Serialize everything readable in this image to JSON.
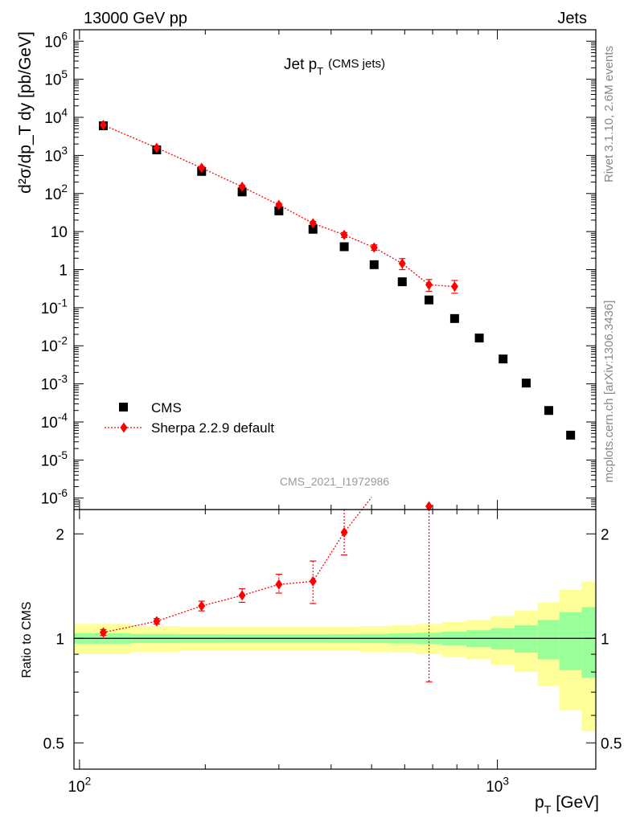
{
  "header": {
    "left": "13000 GeV pp",
    "right": "Jets"
  },
  "side_labels": {
    "rivet": "Rivet 3.1.10,  2.6M events",
    "mcplots": "mcplots.cern.ch [arXiv:1306.3436]"
  },
  "chart_data": [
    {
      "type": "scatter",
      "title": "Jet p_T (CMS jets)",
      "title_main": "Jet p",
      "title_sub": "T",
      "title_suffix": "(CMS jets)",
      "ylabel": "d²σ/dp_T dy [pb/GeV]",
      "xscale": "log",
      "yscale": "log",
      "xlim": [
        97,
        1720
      ],
      "ylim": [
        5e-07,
        2000000.0
      ],
      "y_tick_labels": [
        "10^6",
        "10^5",
        "10^4",
        "10^3",
        "10^2",
        "10",
        "1",
        "10^-1",
        "10^-2",
        "10^-3",
        "10^-4",
        "10^-5",
        "10^-6"
      ],
      "legend_position": "lower-left",
      "watermark": "CMS_2021_I1972986",
      "series": [
        {
          "name": "CMS",
          "marker": "square",
          "color": "#000000",
          "x": [
            114,
            153,
            196,
            245,
            300,
            362,
            430,
            507,
            592,
            686,
            790,
            905,
            1032,
            1172,
            1327,
            1497
          ],
          "y": [
            6000,
            1400,
            380,
            110,
            35,
            11.5,
            4.0,
            1.35,
            0.48,
            0.16,
            0.052,
            0.016,
            0.0045,
            0.00105,
            0.0002,
            4.5e-05
          ]
        },
        {
          "name": "Sherpa 2.2.9 default",
          "marker": "diamond",
          "color": "#ff0000",
          "x": [
            114,
            153,
            196,
            245,
            300,
            362,
            430,
            507,
            592,
            686,
            790
          ],
          "y": [
            6300,
            1580,
            470,
            150,
            50,
            16.5,
            8.2,
            3.8,
            1.45,
            0.4,
            0.36
          ],
          "yerr_low": [
            500,
            130,
            40,
            14,
            5,
            2,
            1.2,
            0.6,
            0.45,
            0.13,
            0.12
          ],
          "yerr_high": [
            500,
            130,
            40,
            14,
            5,
            2,
            1.2,
            0.7,
            0.5,
            0.15,
            0.16
          ]
        }
      ]
    },
    {
      "type": "scatter",
      "title": "",
      "ylabel": "Ratio to CMS",
      "xlabel": "p_T [GeV]",
      "xlabel_main": "p",
      "xlabel_sub": "T",
      "xlabel_suffix": "[GeV]",
      "xscale": "log",
      "yscale": "log",
      "xlim": [
        97,
        1720
      ],
      "ylim": [
        0.42,
        2.35
      ],
      "x_tick_labels": [
        "10^2",
        "10^3"
      ],
      "y_tick_labels": [
        "0.5",
        "1",
        "2"
      ],
      "band_edges": [
        97,
        133,
        174,
        221,
        273,
        331,
        396,
        468,
        548,
        636,
        736,
        843,
        965,
        1099,
        1249,
        1407,
        1590,
        1720
      ],
      "band_green_half": [
        0.035,
        0.03,
        0.028,
        0.027,
        0.027,
        0.027,
        0.028,
        0.03,
        0.033,
        0.038,
        0.045,
        0.055,
        0.07,
        0.09,
        0.13,
        0.19,
        0.23
      ],
      "band_yellow_half": [
        0.1,
        0.085,
        0.08,
        0.08,
        0.08,
        0.08,
        0.08,
        0.085,
        0.09,
        0.1,
        0.115,
        0.13,
        0.16,
        0.2,
        0.27,
        0.38,
        0.46
      ],
      "series": [
        {
          "name": "Sherpa 2.2.9 default",
          "marker": "diamond",
          "color": "#ff0000",
          "x": [
            114,
            153,
            196,
            245,
            300,
            362,
            430,
            686
          ],
          "y": [
            1.04,
            1.12,
            1.24,
            1.33,
            1.43,
            1.46,
            2.02,
            2.4
          ],
          "yerr_low": [
            0.02,
            0.02,
            0.04,
            0.06,
            0.08,
            0.2,
            0.28,
            1.65
          ],
          "yerr_high": [
            0.02,
            0.02,
            0.04,
            0.06,
            0.1,
            0.21,
            0.38,
            0.3
          ],
          "trend_to": [
            500,
            2.55
          ]
        }
      ]
    }
  ]
}
